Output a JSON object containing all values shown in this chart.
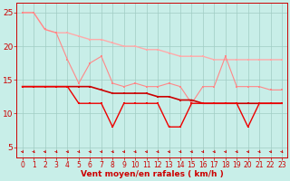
{
  "background_color": "#c8eee8",
  "grid_color": "#a0ccc4",
  "xlabel": "Vent moyen/en rafales ( km/h )",
  "xlim": [
    -0.5,
    23.5
  ],
  "ylim": [
    3.5,
    26.5
  ],
  "yticks": [
    5,
    10,
    15,
    20,
    25
  ],
  "xticks": [
    0,
    1,
    2,
    3,
    4,
    5,
    6,
    7,
    8,
    9,
    10,
    11,
    12,
    13,
    14,
    15,
    16,
    17,
    18,
    19,
    20,
    21,
    22,
    23
  ],
  "line_smooth_upper_color": "#ffaaaa",
  "line_jagged_upper_color": "#ff8888",
  "line_smooth_lower_color": "#cc0000",
  "line_jagged_lower_color": "#ee0000",
  "line_smooth_upper_y": [
    25.0,
    25.0,
    22.5,
    22.0,
    22.0,
    21.5,
    21.0,
    21.0,
    20.5,
    20.0,
    20.0,
    19.5,
    19.5,
    19.0,
    18.5,
    18.5,
    18.5,
    18.0,
    18.0,
    18.0,
    18.0,
    18.0,
    18.0,
    18.0
  ],
  "line_jagged_upper_y": [
    25.0,
    25.0,
    22.5,
    22.0,
    18.0,
    14.5,
    17.5,
    18.5,
    14.5,
    14.0,
    14.5,
    14.0,
    14.0,
    14.5,
    14.0,
    11.5,
    14.0,
    14.0,
    18.5,
    14.0,
    14.0,
    14.0,
    13.5,
    13.5
  ],
  "line_smooth_lower_y": [
    14.0,
    14.0,
    14.0,
    14.0,
    14.0,
    14.0,
    14.0,
    13.5,
    13.0,
    13.0,
    13.0,
    13.0,
    12.5,
    12.5,
    12.0,
    12.0,
    11.5,
    11.5,
    11.5,
    11.5,
    11.5,
    11.5,
    11.5,
    11.5
  ],
  "line_jagged_lower_y": [
    14.0,
    14.0,
    14.0,
    14.0,
    14.0,
    11.5,
    11.5,
    11.5,
    8.0,
    11.5,
    11.5,
    11.5,
    11.5,
    8.0,
    8.0,
    11.5,
    11.5,
    11.5,
    11.5,
    11.5,
    8.0,
    11.5,
    11.5,
    11.5
  ],
  "arrow_color": "#cc0000",
  "tick_color": "#cc0000",
  "spine_color": "#cc0000"
}
